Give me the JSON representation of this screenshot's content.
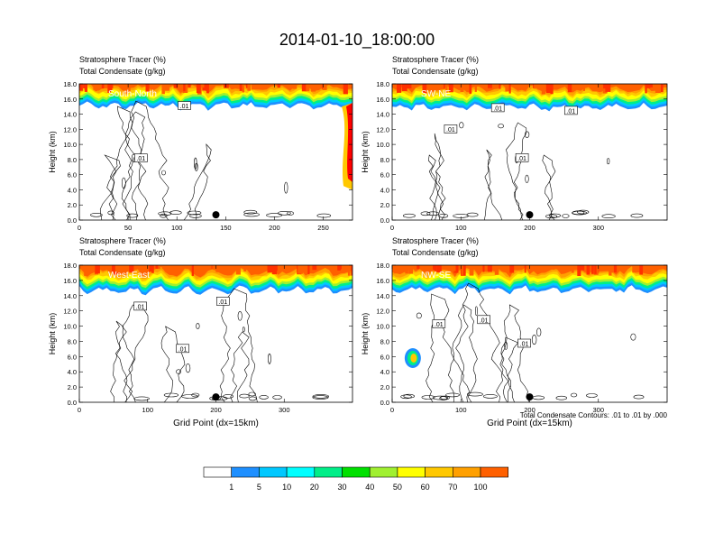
{
  "title": "2014-01-10_18:00:00",
  "footnote": "Total Condensate Contours: .01 to .01 by .000",
  "colorbar": {
    "labels": [
      "1",
      "5",
      "10",
      "20",
      "30",
      "40",
      "50",
      "60",
      "70",
      "100"
    ],
    "colors": [
      "#ffffff",
      "#1e8fff",
      "#00c8ff",
      "#00ffff",
      "#00ee88",
      "#00e000",
      "#a0f030",
      "#ffff00",
      "#ffc800",
      "#ffa000",
      "#ff6000",
      "#ff0000"
    ]
  },
  "chart_data": [
    {
      "type": "contour-cross-section",
      "panel": "South-North",
      "line1": "Stratosphere Tracer   (%)",
      "line2": "Total Condensate   (g/kg)",
      "ylabel": "Height (km)",
      "xlabel": "",
      "xlim": [
        0,
        280
      ],
      "ylim": [
        0,
        18
      ],
      "xticks": [
        "0",
        "50",
        "100",
        "150",
        "200",
        "250"
      ],
      "yticks": [
        "0.0",
        "2.0",
        "4.0",
        "6.0",
        "8.0",
        "10.0",
        "12.0",
        "14.0",
        "16.0",
        "18.0"
      ],
      "contour_labels": [
        ".01",
        ".01"
      ],
      "marker_x": 140,
      "tracer_base_km": 15.6,
      "right_edge_tracer": true
    },
    {
      "type": "contour-cross-section",
      "panel": "SW-NE",
      "line1": "Stratosphere Tracer   (%)",
      "line2": "Total Condensate   (g/kg)",
      "ylabel": "Height (km)",
      "xlabel": "",
      "xlim": [
        0,
        400
      ],
      "ylim": [
        0,
        18
      ],
      "xticks": [
        "0",
        "100",
        "200",
        "300"
      ],
      "yticks": [
        "0.0",
        "2.0",
        "4.0",
        "6.0",
        "8.0",
        "10.0",
        "12.0",
        "14.0",
        "16.0",
        "18.0"
      ],
      "contour_labels": [
        ".01",
        ".01",
        ".01",
        ".01"
      ],
      "marker_x": 200,
      "tracer_base_km": 15.4
    },
    {
      "type": "contour-cross-section",
      "panel": "West-East",
      "line1": "Stratosphere Tracer   (%)",
      "line2": "Total Condensate   (g/kg)",
      "ylabel": "Height (km)",
      "xlabel": "Grid Point (dx=15km)",
      "xlim": [
        0,
        400
      ],
      "ylim": [
        0,
        18
      ],
      "xticks": [
        "0",
        "100",
        "200",
        "300"
      ],
      "yticks": [
        "0.0",
        "2.0",
        "4.0",
        "6.0",
        "8.0",
        "10.0",
        "12.0",
        "14.0",
        "16.0",
        "18.0"
      ],
      "contour_labels": [
        ".01",
        ".01",
        ".01"
      ],
      "marker_x": 200,
      "tracer_base_km": 15.2
    },
    {
      "type": "contour-cross-section",
      "panel": "NW-SE",
      "line1": "Stratosphere Tracer   (%)",
      "line2": "Total Condensate   (g/kg)",
      "ylabel": "Height (km)",
      "xlabel": "Grid Point (dx=15km)",
      "xlim": [
        0,
        400
      ],
      "ylim": [
        0,
        18
      ],
      "xticks": [
        "0",
        "100",
        "200",
        "300"
      ],
      "yticks": [
        "0.0",
        "2.0",
        "4.0",
        "6.0",
        "8.0",
        "10.0",
        "12.0",
        "14.0",
        "16.0",
        "18.0"
      ],
      "contour_labels": [
        ".01",
        ".01",
        ".01"
      ],
      "marker_x": 200,
      "tracer_base_km": 15.3,
      "blob": {
        "x": 30,
        "y_km": 5.8
      }
    }
  ]
}
